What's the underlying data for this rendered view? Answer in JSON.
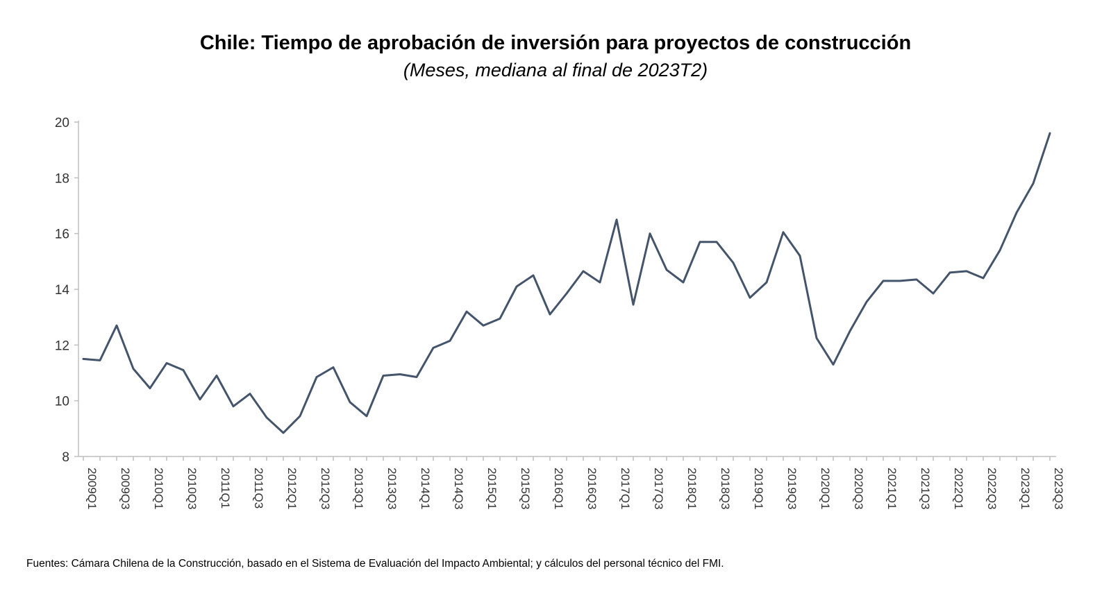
{
  "chart_data": {
    "type": "line",
    "title": "Chile: Tiempo de aprobación de inversión para proyectos de construcción",
    "subtitle": "(Meses, mediana al final de 2023T2)",
    "xlabel": "",
    "ylabel": "",
    "ylim": [
      8,
      20
    ],
    "yticks": [
      8,
      10,
      12,
      14,
      16,
      18,
      20
    ],
    "x": [
      "2009Q1",
      "2009Q2",
      "2009Q3",
      "2009Q4",
      "2010Q1",
      "2010Q2",
      "2010Q3",
      "2010Q4",
      "2011Q1",
      "2011Q2",
      "2011Q3",
      "2011Q4",
      "2012Q1",
      "2012Q2",
      "2012Q3",
      "2012Q4",
      "2013Q1",
      "2013Q2",
      "2013Q3",
      "2013Q4",
      "2014Q1",
      "2014Q2",
      "2014Q3",
      "2014Q4",
      "2015Q1",
      "2015Q2",
      "2015Q3",
      "2015Q4",
      "2016Q1",
      "2016Q2",
      "2016Q3",
      "2016Q4",
      "2017Q1",
      "2017Q2",
      "2017Q3",
      "2017Q4",
      "2018Q1",
      "2018Q2",
      "2018Q3",
      "2018Q4",
      "2019Q1",
      "2019Q2",
      "2019Q3",
      "2019Q4",
      "2020Q1",
      "2020Q2",
      "2020Q3",
      "2020Q4",
      "2021Q1",
      "2021Q2",
      "2021Q3",
      "2021Q4",
      "2022Q1",
      "2022Q2",
      "2022Q3",
      "2022Q4",
      "2023Q1",
      "2023Q2",
      "2023Q3"
    ],
    "xtick_labels": [
      "2009Q1",
      "2009Q3",
      "2010Q1",
      "2010Q3",
      "2011Q1",
      "2011Q3",
      "2012Q1",
      "2012Q3",
      "2013Q1",
      "2013Q3",
      "2014Q1",
      "2014Q3",
      "2015Q1",
      "2015Q3",
      "2016Q1",
      "2016Q3",
      "2017Q1",
      "2017Q3",
      "2018Q1",
      "2018Q3",
      "2019Q1",
      "2019Q3",
      "2020Q1",
      "2020Q3",
      "2021Q1",
      "2021Q3",
      "2022Q1",
      "2022Q3",
      "2023Q1",
      "2023Q3"
    ],
    "series": [
      {
        "name": "Tiempo de aprobación",
        "color": "#44546a",
        "values": [
          11.5,
          11.45,
          12.7,
          11.15,
          10.45,
          11.35,
          11.1,
          10.05,
          10.9,
          9.8,
          10.25,
          9.4,
          8.85,
          9.45,
          10.85,
          11.2,
          9.95,
          9.45,
          10.9,
          10.95,
          10.85,
          11.9,
          12.15,
          13.2,
          12.7,
          12.95,
          14.1,
          14.5,
          13.1,
          13.85,
          14.65,
          14.25,
          16.5,
          13.45,
          16.0,
          14.7,
          14.25,
          15.7,
          15.7,
          14.95,
          13.7,
          14.25,
          16.05,
          15.2,
          12.25,
          11.3,
          12.5,
          13.55,
          14.3,
          14.3,
          14.35,
          13.85,
          14.6,
          14.65,
          14.4,
          15.4,
          16.75,
          17.8,
          19.6
        ]
      }
    ]
  },
  "footer": {
    "source": "Fuentes: Cámara Chilena de la Construcción, basado en el Sistema de Evaluación del Impacto Ambiental; y cálculos del personal técnico del FMI."
  }
}
